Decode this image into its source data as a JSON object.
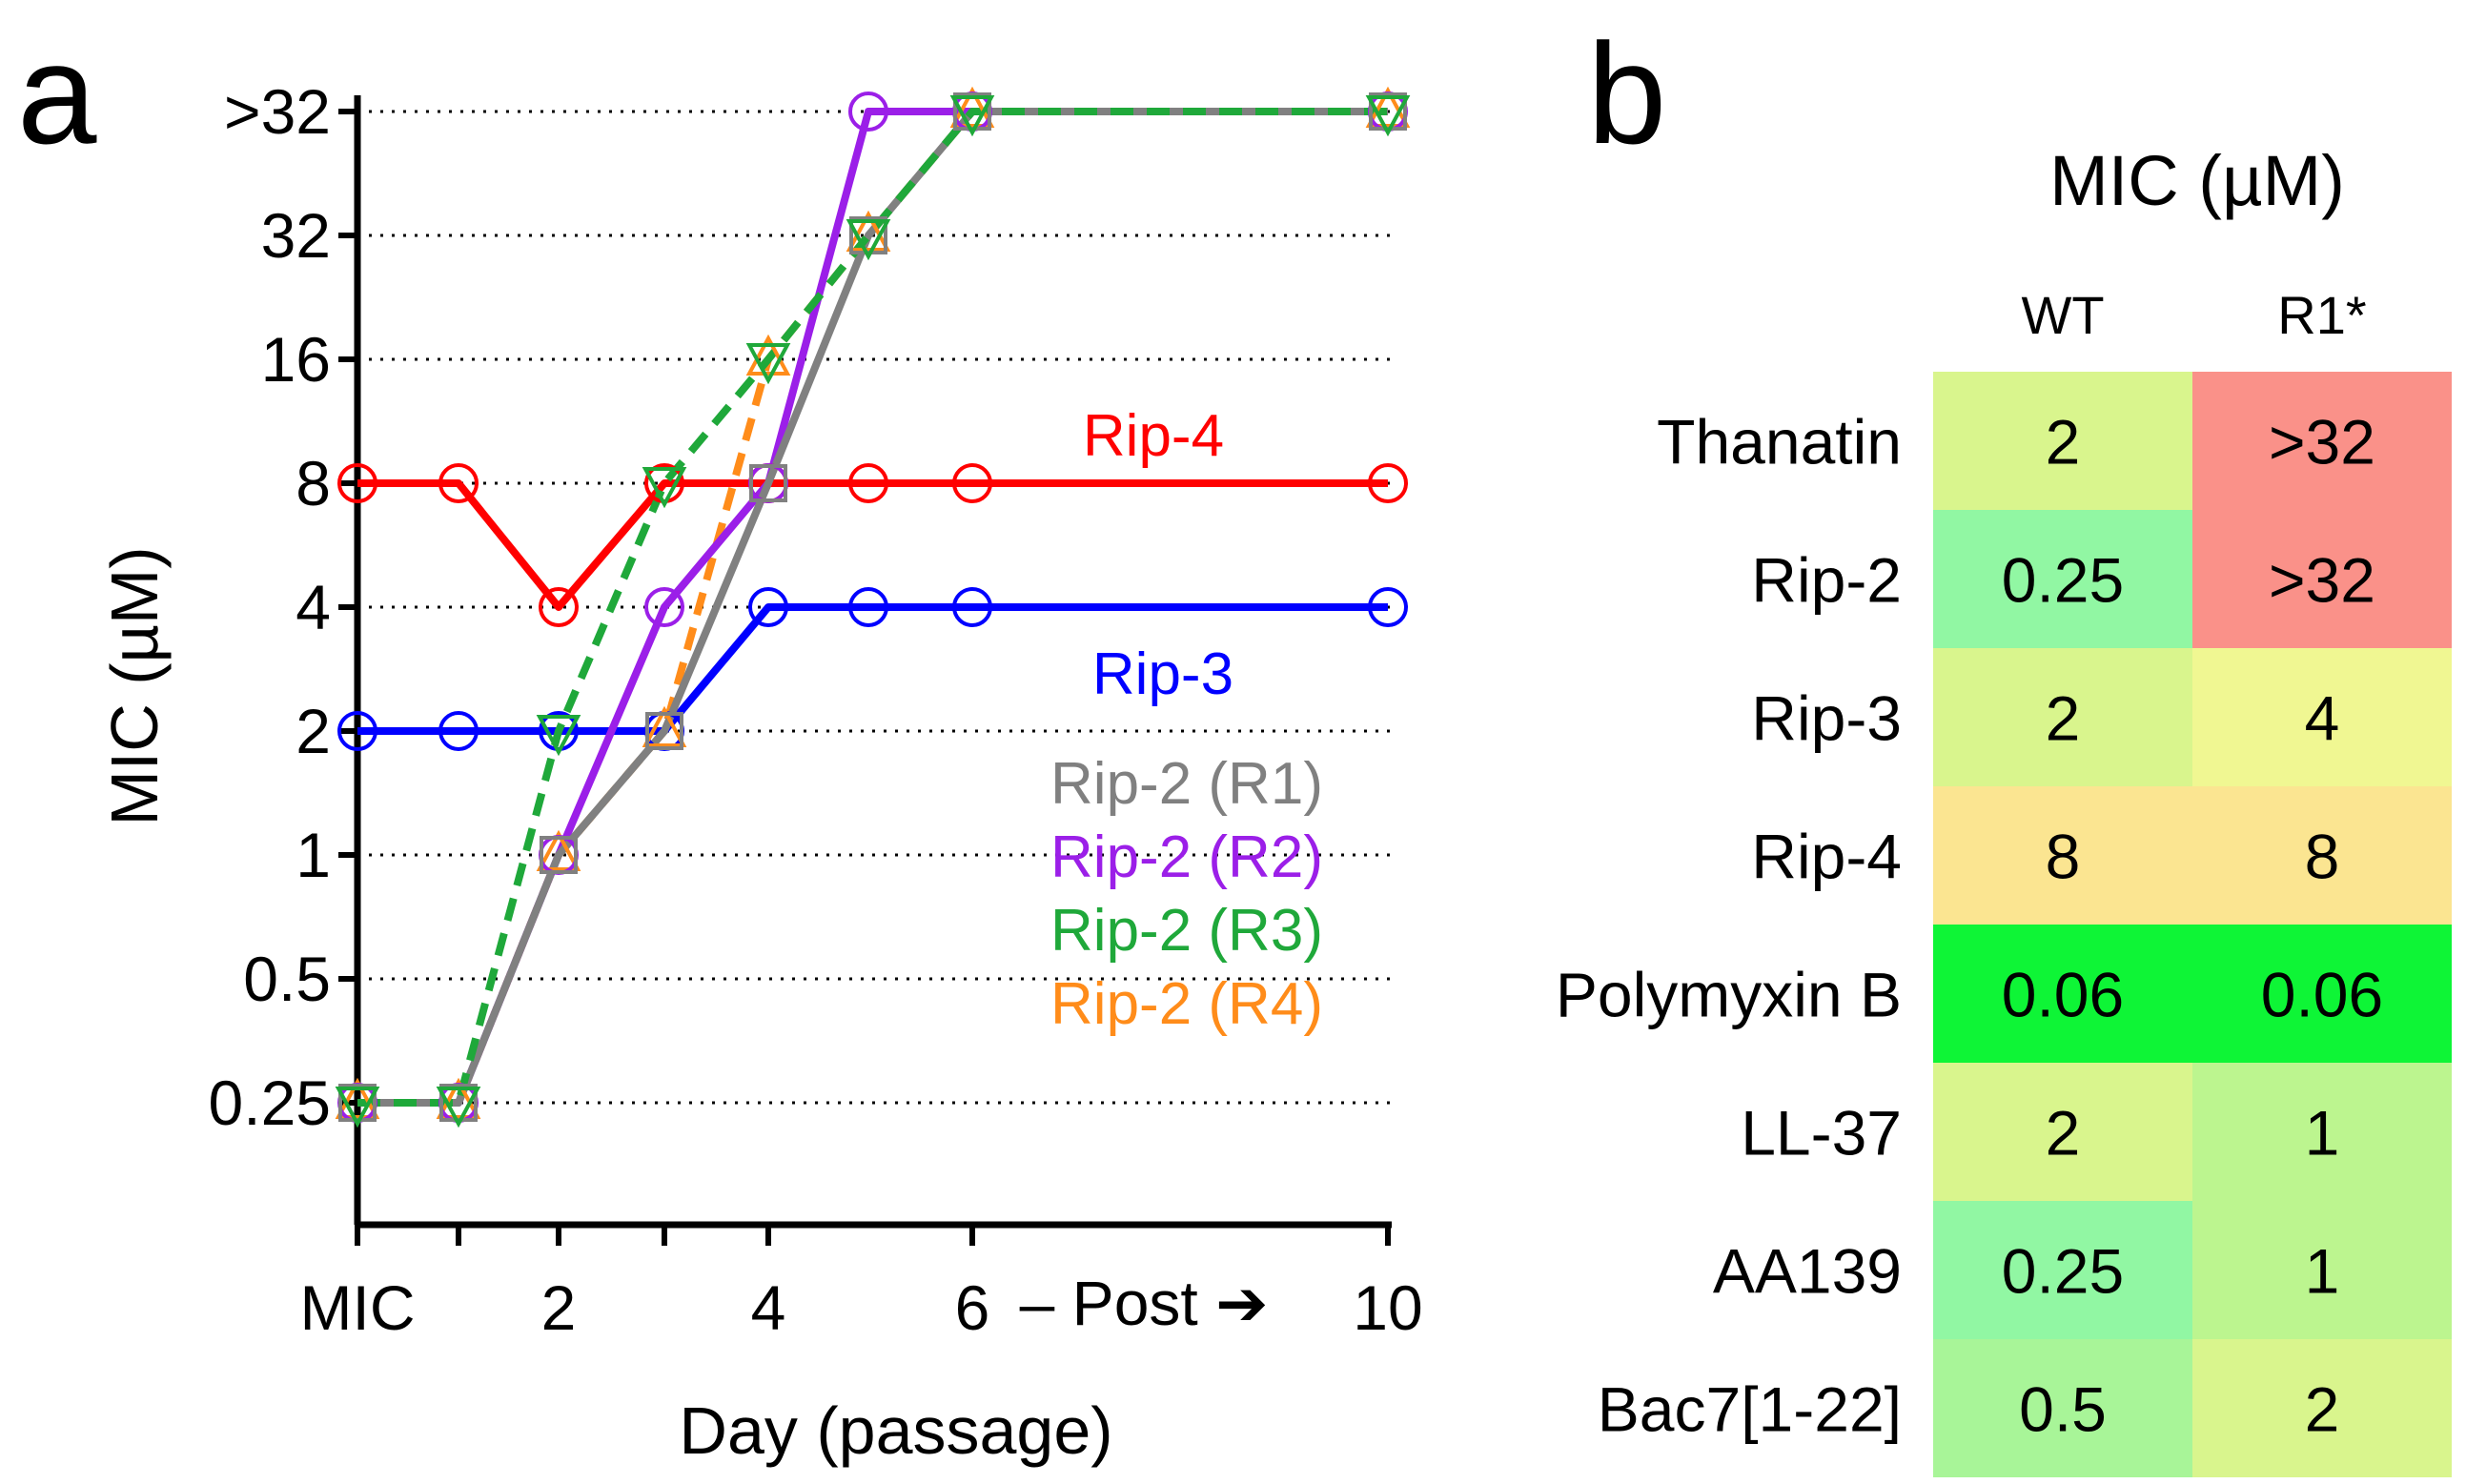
{
  "panel_a": {
    "letter": "a"
  },
  "panel_b": {
    "letter": "b"
  },
  "chart_data": [
    {
      "type": "line",
      "title": "",
      "xlabel": "Day (passage)",
      "ylabel": "MIC (µM)",
      "x_positions": [
        0,
        1,
        2,
        3,
        4,
        5,
        6,
        10
      ],
      "x_tick_labels": [
        {
          "x": 0,
          "label": "MIC"
        },
        {
          "x": 1,
          "label": ""
        },
        {
          "x": 2,
          "label": "2"
        },
        {
          "x": 3,
          "label": ""
        },
        {
          "x": 4,
          "label": "4"
        },
        {
          "x": 6,
          "label": "6"
        },
        {
          "x": 10,
          "label": "10"
        }
      ],
      "x_annotation": "– Post ➔",
      "y_scale": "log2",
      "y_ticks": [
        {
          "value": 0.25,
          "label": "0.25"
        },
        {
          "value": 0.5,
          "label": "0.5"
        },
        {
          "value": 1,
          "label": "1"
        },
        {
          "value": 2,
          "label": "2"
        },
        {
          "value": 4,
          "label": "4"
        },
        {
          "value": 8,
          "label": "8"
        },
        {
          "value": 16,
          "label": "16"
        },
        {
          "value": 32,
          "label": "32"
        },
        {
          "value": 64,
          "label": ">32"
        }
      ],
      "grid": "dotted horizontal",
      "series": [
        {
          "name": "Rip-4",
          "color": "#ff0000",
          "marker": "circle",
          "dash": false,
          "x": [
            0,
            1,
            2,
            3,
            4,
            5,
            6,
            10
          ],
          "values": [
            8,
            8,
            4,
            8,
            8,
            8,
            8,
            8
          ]
        },
        {
          "name": "Rip-3",
          "color": "#0000ff",
          "marker": "circle",
          "dash": false,
          "x": [
            0,
            1,
            2,
            3,
            4,
            5,
            6,
            10
          ],
          "values": [
            2,
            2,
            2,
            2,
            4,
            4,
            4,
            4
          ]
        },
        {
          "name": "Rip-2 (R4)",
          "color": "#ff8c1a",
          "marker": "triangle-up",
          "dash": true,
          "x": [
            0,
            1,
            2,
            3,
            4,
            5,
            6,
            10
          ],
          "values": [
            0.25,
            0.25,
            1,
            2,
            16,
            32,
            ">32",
            ">32"
          ]
        },
        {
          "name": "Rip-2 (R2)",
          "color": "#9b1fe8",
          "marker": "circle",
          "dash": false,
          "x": [
            0,
            1,
            2,
            3,
            4,
            5,
            6,
            10
          ],
          "values": [
            0.25,
            0.25,
            1,
            4,
            8,
            ">32",
            ">32",
            ">32"
          ]
        },
        {
          "name": "Rip-2 (R1)",
          "color": "#808080",
          "marker": "square",
          "dash": false,
          "x": [
            0,
            1,
            2,
            3,
            4,
            5,
            6,
            10
          ],
          "values": [
            0.25,
            0.25,
            1,
            2,
            8,
            32,
            ">32",
            ">32"
          ]
        },
        {
          "name": "Rip-2 (R3)",
          "color": "#1fa83a",
          "marker": "triangle-down",
          "dash": true,
          "x": [
            0,
            1,
            2,
            3,
            4,
            5,
            6,
            10
          ],
          "values": [
            0.25,
            0.25,
            2,
            8,
            16,
            32,
            ">32",
            ">32"
          ]
        }
      ],
      "series_labels_order": [
        "Rip-4",
        "Rip-3",
        "Rip-2 (R1)",
        "Rip-2 (R2)",
        "Rip-2 (R3)",
        "Rip-2 (R4)"
      ]
    },
    {
      "type": "heatmap",
      "title": "MIC (µM)",
      "columns": [
        "WT",
        "R1*"
      ],
      "rows": [
        {
          "label": "Thanatin",
          "values": [
            "2",
            ">32"
          ],
          "colors": [
            "#d9f58d",
            "#fa9189"
          ]
        },
        {
          "label": "Rip-2",
          "values": [
            "0.25",
            ">32"
          ],
          "colors": [
            "#91f7a3",
            "#fa9189"
          ]
        },
        {
          "label": "Rip-3",
          "values": [
            "2",
            "4"
          ],
          "colors": [
            "#d9f58d",
            "#f0f792"
          ]
        },
        {
          "label": "Rip-4",
          "values": [
            "8",
            "8"
          ],
          "colors": [
            "#fbe591",
            "#fbe591"
          ]
        },
        {
          "label": "Polymyxin B",
          "values": [
            "0.06",
            "0.06"
          ],
          "colors": [
            "#0ef536",
            "#0ef536"
          ]
        },
        {
          "label": "LL-37",
          "values": [
            "2",
            "1"
          ],
          "colors": [
            "#d9f58d",
            "#bcf58f"
          ]
        },
        {
          "label": "AA139",
          "values": [
            "0.25",
            "1"
          ],
          "colors": [
            "#91f7a3",
            "#bcf58f"
          ]
        },
        {
          "label": "Bac7[1-22]",
          "values": [
            "0.5",
            "2"
          ],
          "colors": [
            "#a8f598",
            "#d9f58d"
          ]
        }
      ]
    }
  ]
}
